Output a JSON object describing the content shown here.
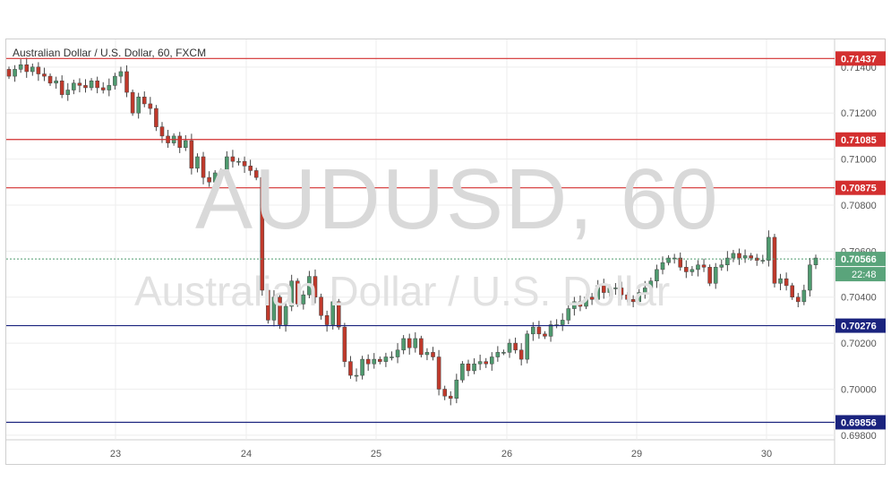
{
  "header": {
    "title": "Australian Dollar / U.S. Dollar, 60, FXCM"
  },
  "watermark": {
    "symbol": "AUDUSD, 60",
    "name": "Australian Dollar / U.S. Dollar"
  },
  "colors": {
    "up": "#4f9a6f",
    "down": "#c0392b",
    "resistance": "#d32f2f",
    "support": "#1a237e",
    "grid": "#eeeeee"
  },
  "chart_data": {
    "type": "candlestick",
    "symbol": "AUDUSD",
    "interval": "60",
    "ylim": [
      0.6978,
      0.7152
    ],
    "y_ticks": [
      "0.71400",
      "0.71200",
      "0.71000",
      "0.70800",
      "0.70600",
      "0.70400",
      "0.70200",
      "0.70000",
      "0.69800"
    ],
    "x_ticks": [
      "23",
      "24",
      "25",
      "26",
      "29",
      "30"
    ],
    "horizontal_lines": [
      {
        "label": "0.71437",
        "value": 0.71437,
        "kind": "resistance"
      },
      {
        "label": "0.71085",
        "value": 0.71085,
        "kind": "resistance"
      },
      {
        "label": "0.70875",
        "value": 0.70875,
        "kind": "resistance"
      },
      {
        "label": "0.70276",
        "value": 0.70276,
        "kind": "support"
      },
      {
        "label": "0.69856",
        "value": 0.69856,
        "kind": "support"
      }
    ],
    "last_price": {
      "label": "0.70566",
      "value": 0.70566,
      "countdown": "22:48"
    },
    "grid": true,
    "closes": [
      0.7136,
      0.7139,
      0.7141,
      0.7138,
      0.714,
      0.7137,
      0.7136,
      0.7133,
      0.7134,
      0.7128,
      0.713,
      0.7133,
      0.7132,
      0.7131,
      0.7134,
      0.7131,
      0.713,
      0.7132,
      0.7136,
      0.7138,
      0.7129,
      0.712,
      0.7127,
      0.7124,
      0.7122,
      0.7114,
      0.711,
      0.7107,
      0.711,
      0.7105,
      0.7108,
      0.7096,
      0.7101,
      0.7092,
      0.709,
      0.7094,
      0.7092,
      0.7101,
      0.7099,
      0.7099,
      0.7097,
      0.7095,
      0.7092,
      0.7043,
      0.703,
      0.704,
      0.7028,
      0.7036,
      0.7047,
      0.7037,
      0.7041,
      0.7049,
      0.704,
      0.7032,
      0.7028,
      0.7038,
      0.7027,
      0.7012,
      0.7006,
      0.7006,
      0.7013,
      0.7011,
      0.7013,
      0.7012,
      0.7014,
      0.7014,
      0.7017,
      0.7022,
      0.7018,
      0.7022,
      0.7015,
      0.7016,
      0.7014,
      0.7,
      0.6997,
      0.6996,
      0.7004,
      0.7011,
      0.7008,
      0.7011,
      0.7012,
      0.7011,
      0.7014,
      0.7016,
      0.7016,
      0.702,
      0.7017,
      0.7013,
      0.7024,
      0.7027,
      0.7024,
      0.7023,
      0.7028,
      0.7028,
      0.703,
      0.7035,
      0.7038,
      0.7036,
      0.704,
      0.7039,
      0.7045,
      0.7042,
      0.7044,
      0.7044,
      0.7041,
      0.7039,
      0.7038,
      0.7042,
      0.7044,
      0.7047,
      0.7052,
      0.7055,
      0.7057,
      0.7057,
      0.7053,
      0.7051,
      0.7052,
      0.7054,
      0.7053,
      0.7046,
      0.7053,
      0.7054,
      0.7057,
      0.7059,
      0.7057,
      0.7058,
      0.7057,
      0.7056,
      0.7056,
      0.7066,
      0.7046,
      0.7048,
      0.7045,
      0.704,
      0.7038,
      0.7043,
      0.7054,
      0.7057
    ]
  }
}
